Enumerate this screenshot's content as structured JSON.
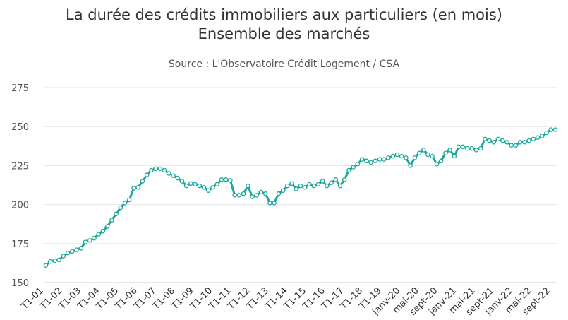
{
  "chart_data": {
    "type": "line",
    "title": "La durée des crédits immobiliers aux particuliers (en mois)",
    "subtitle": "Ensemble des marchés",
    "source": "Source : L'Observatoire Crédit Logement / CSA",
    "ylim": [
      150,
      275
    ],
    "yticks": [
      150,
      175,
      200,
      225,
      250,
      275
    ],
    "grid": true,
    "color": "#1aa89a",
    "xtick_labels": [
      "T1-01",
      "T1-02",
      "T1-03",
      "T1-04",
      "T1-05",
      "T1-06",
      "T1-07",
      "T1-08",
      "T1-09",
      "T1-10",
      "T1-11",
      "T1-12",
      "T1-13",
      "T1-14",
      "T1-15",
      "T1-16",
      "T1-17",
      "T1-18",
      "T1-19",
      "janv-20",
      "mai-20",
      "sept-20",
      "janv-21",
      "mai-21",
      "sept-21",
      "janv-22",
      "mai-22",
      "sept-22"
    ],
    "values": [
      161,
      163.5,
      164,
      164.5,
      167,
      169,
      170,
      171,
      172,
      176,
      177,
      178.5,
      181,
      183,
      186,
      190,
      194,
      198,
      201,
      203,
      210.5,
      211,
      215,
      219,
      222,
      223,
      223,
      222,
      220,
      218.5,
      217,
      215,
      212,
      213.5,
      213,
      212,
      211,
      209,
      211,
      213,
      216,
      216,
      215.5,
      206,
      206,
      207,
      212,
      205,
      206,
      208,
      207,
      201,
      201,
      207,
      209,
      212,
      213.5,
      210,
      212,
      211,
      213,
      212,
      213,
      215,
      212,
      214,
      216,
      212,
      216,
      222,
      224,
      226,
      229,
      228,
      227,
      228,
      229,
      229,
      230,
      231,
      232,
      231,
      230,
      225,
      230,
      233,
      235,
      232,
      231,
      226,
      228,
      233,
      235,
      231,
      237,
      237,
      236,
      236,
      235,
      236,
      242,
      241,
      240,
      242,
      241,
      240,
      238,
      238,
      240,
      240,
      241,
      242,
      243,
      244,
      246,
      248,
      248
    ]
  }
}
